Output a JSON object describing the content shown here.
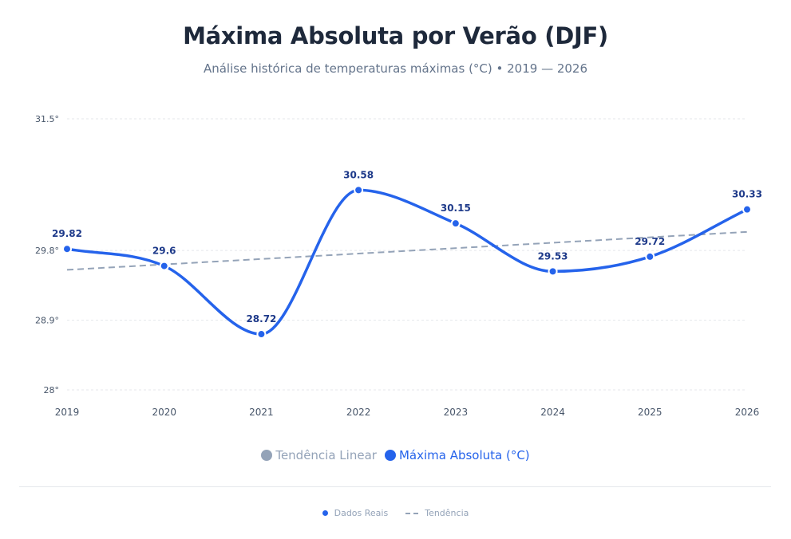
{
  "header": {
    "title": "Máxima Absoluta por Verão (DJF)",
    "subtitle": "Análise histórica de temperaturas máximas (°C) • 2019 — 2026"
  },
  "legend": {
    "trend_label": "Tendência Linear",
    "series_label": "Máxima Absoluta (°C)"
  },
  "footer": {
    "real_label": "Dados Reais",
    "trend_label": "Tendência"
  },
  "colors": {
    "series": "#2563eb",
    "trend": "#94a3b8",
    "label": "#1e3a8a",
    "grid": "#e5e7eb",
    "tick": "#475569"
  },
  "chart_data": {
    "type": "line",
    "title": "Máxima Absoluta por Verão (DJF)",
    "xlabel": "",
    "ylabel": "",
    "categories": [
      "2019",
      "2020",
      "2021",
      "2022",
      "2023",
      "2024",
      "2025",
      "2026"
    ],
    "series": [
      {
        "name": "Máxima Absoluta (°C)",
        "values": [
          29.82,
          29.6,
          28.72,
          30.58,
          30.15,
          29.53,
          29.72,
          30.33
        ]
      },
      {
        "name": "Tendência Linear",
        "values": [
          29.55,
          29.62,
          29.69,
          29.76,
          29.83,
          29.9,
          29.97,
          30.04
        ]
      }
    ],
    "ylim": [
      28,
      31.5
    ],
    "yticks": [
      28,
      28.9,
      29.8,
      31.5
    ],
    "ytick_labels": [
      "28°",
      "28.9°",
      "29.8°",
      "31.5°"
    ],
    "grid": true
  }
}
